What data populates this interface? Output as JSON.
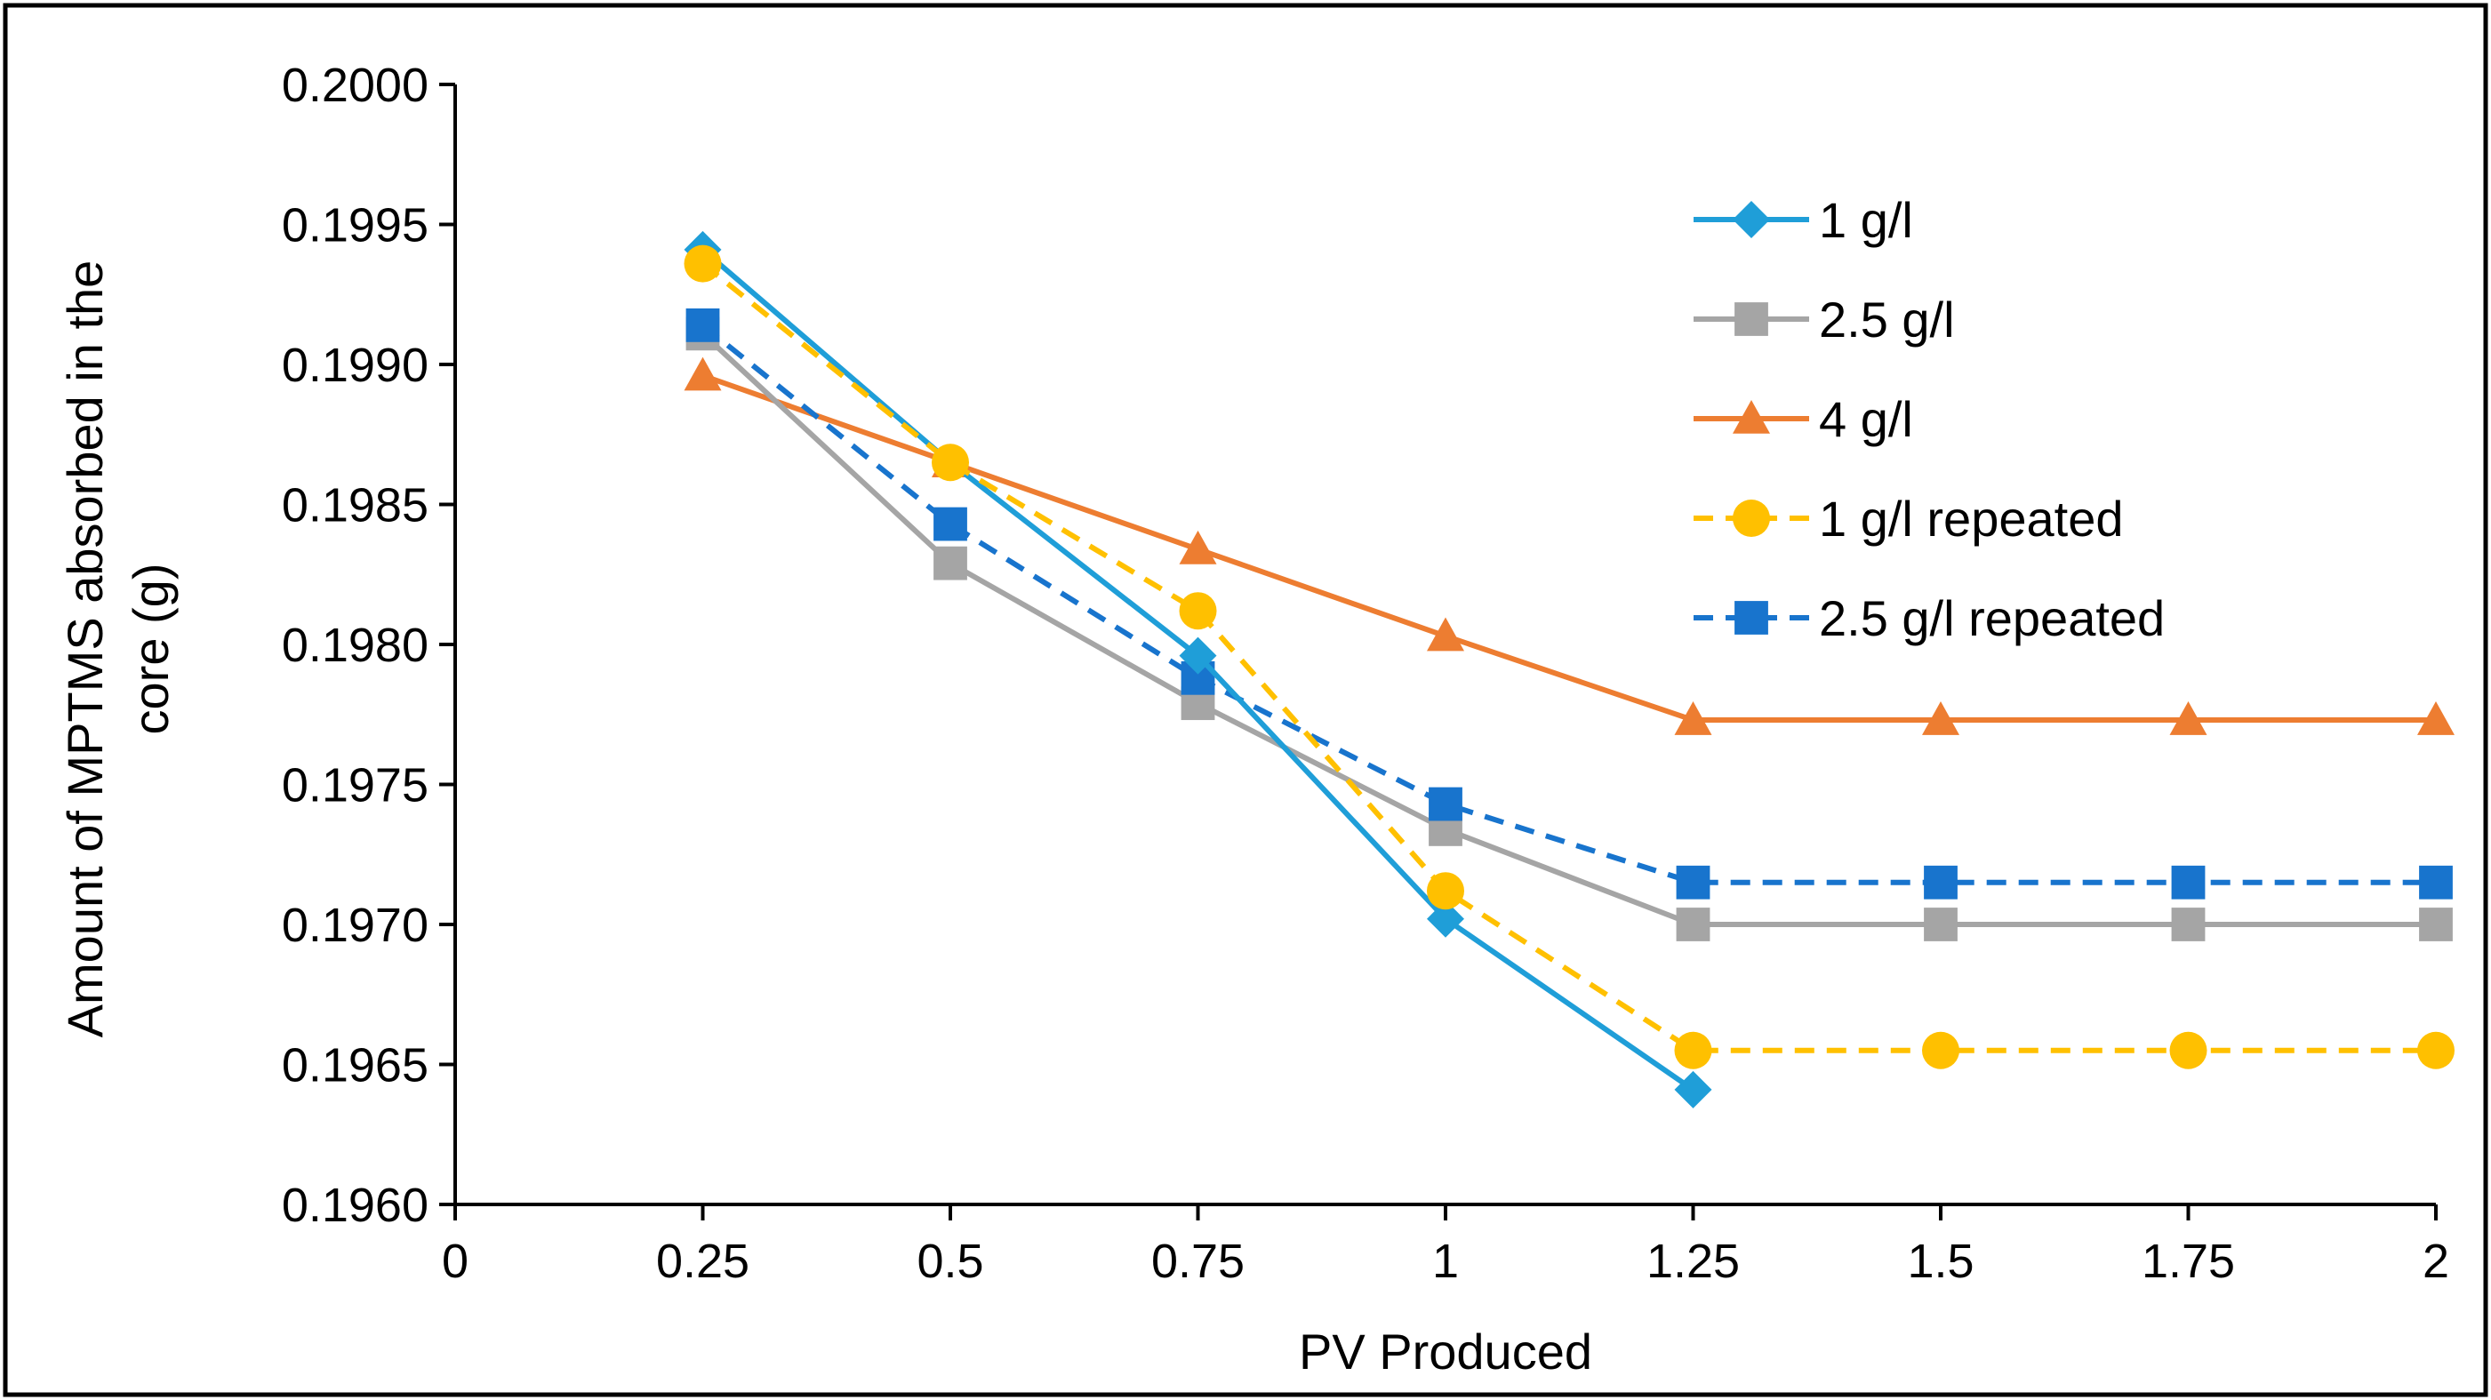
{
  "chart_data": {
    "type": "line",
    "title": "",
    "xlabel": "PV Produced",
    "ylabel_line1": "Amount of MPTMS absorbed in the",
    "ylabel_line2": "core (g)",
    "xlim": [
      0,
      2
    ],
    "ylim": [
      0.196,
      0.2
    ],
    "x_ticks": [
      0,
      0.25,
      0.5,
      0.75,
      1,
      1.25,
      1.5,
      1.75,
      2
    ],
    "x_tick_labels": [
      "0",
      "0.25",
      "0.5",
      "0.75",
      "1",
      "1.25",
      "1.5",
      "1.75",
      "2"
    ],
    "y_ticks": [
      0.196,
      0.1965,
      0.197,
      0.1975,
      0.198,
      0.1985,
      0.199,
      0.1995,
      0.2
    ],
    "y_tick_labels": [
      "0.1960",
      "0.1965",
      "0.1970",
      "0.1975",
      "0.1980",
      "0.1985",
      "0.1990",
      "0.1995",
      "0.2000"
    ],
    "grid": false,
    "legend_position": "top-right",
    "series": [
      {
        "name": "1 g/l",
        "color": "#1F9ED8",
        "marker": "diamond",
        "dashed": false,
        "x": [
          0.25,
          0.5,
          0.75,
          1,
          1.25
        ],
        "y": [
          0.19941,
          0.19865,
          0.19796,
          0.19702,
          0.19641
        ]
      },
      {
        "name": "2.5 g/l",
        "color": "#A5A5A5",
        "marker": "square",
        "dashed": false,
        "x": [
          0.25,
          0.5,
          0.75,
          1,
          1.25,
          1.5,
          1.75,
          2
        ],
        "y": [
          0.19911,
          0.19829,
          0.19779,
          0.19734,
          0.197,
          0.197,
          0.197,
          0.197
        ]
      },
      {
        "name": "4 g/l",
        "color": "#ED7D31",
        "marker": "triangle",
        "dashed": false,
        "x": [
          0.25,
          0.5,
          0.75,
          1,
          1.25,
          1.5,
          1.75,
          2
        ],
        "y": [
          0.19896,
          0.19865,
          0.19834,
          0.19803,
          0.19773,
          0.19773,
          0.19773,
          0.19773
        ]
      },
      {
        "name": "1 g/l repeated",
        "color": "#FFC000",
        "marker": "circle",
        "dashed": true,
        "x": [
          0.25,
          0.5,
          0.75,
          1,
          1.25,
          1.5,
          1.75,
          2
        ],
        "y": [
          0.19936,
          0.19865,
          0.19812,
          0.19712,
          0.19655,
          0.19655,
          0.19655,
          0.19655
        ]
      },
      {
        "name": "2.5 g/l repeated",
        "color": "#1874CD",
        "marker": "square",
        "dashed": true,
        "x": [
          0.25,
          0.5,
          0.75,
          1,
          1.25,
          1.5,
          1.75,
          2
        ],
        "y": [
          0.19914,
          0.19843,
          0.19788,
          0.19743,
          0.19715,
          0.19715,
          0.19715,
          0.19715
        ]
      }
    ]
  }
}
